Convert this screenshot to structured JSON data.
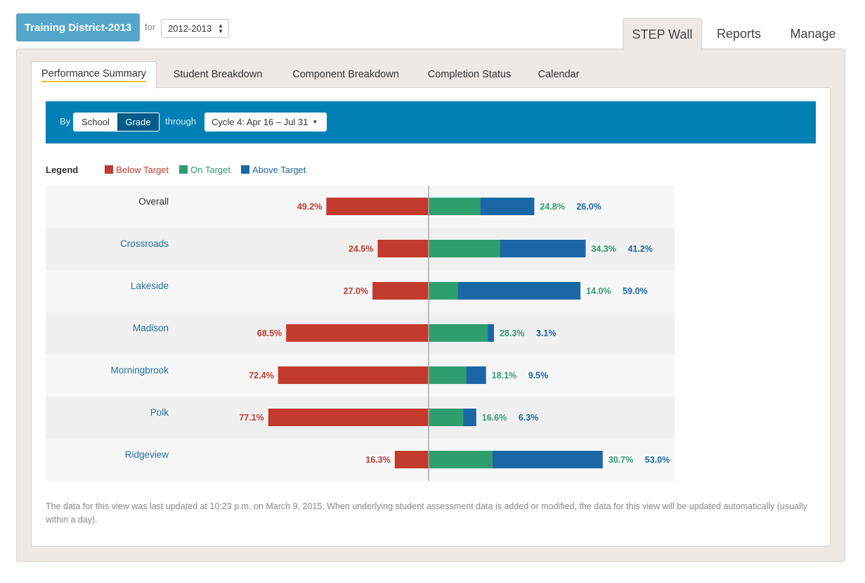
{
  "header": {
    "district": "Training District-2013",
    "for_label": "for",
    "year": "2012-2013",
    "tabs": [
      {
        "label": "STEP Wall",
        "active": true
      },
      {
        "label": "Reports",
        "active": false
      },
      {
        "label": "Manage",
        "active": false
      }
    ]
  },
  "subtabs": [
    {
      "label": "Performance Summary",
      "active": true
    },
    {
      "label": "Student Breakdown",
      "active": false
    },
    {
      "label": "Component Breakdown",
      "active": false
    },
    {
      "label": "Completion Status",
      "active": false
    },
    {
      "label": "Calendar",
      "active": false
    }
  ],
  "filter": {
    "by_label": "By",
    "options": [
      "School",
      "Grade"
    ],
    "selected": "Grade",
    "through_label": "through",
    "cycle": "Cycle 4: Apr 16 – Jul 31"
  },
  "legend": {
    "title": "Legend",
    "items": [
      {
        "label": "Below Target",
        "color": "#c23b2e"
      },
      {
        "label": "On Target",
        "color": "#2f9e6e"
      },
      {
        "label": "Above Target",
        "color": "#1b67a6"
      }
    ]
  },
  "chart_data": {
    "type": "bar",
    "orientation": "diverging-horizontal",
    "categories": [
      "Overall",
      "Crossroads",
      "Lakeside",
      "Madison",
      "Morningbrook",
      "Polk",
      "Ridgeview"
    ],
    "series": [
      {
        "name": "Below Target",
        "values": [
          49.2,
          24.5,
          27.0,
          68.5,
          72.4,
          77.1,
          16.3
        ],
        "labels": [
          "49.2%",
          "24.5%",
          "27.0%",
          "68.5%",
          "72.4%",
          "77.1%",
          "16.3%"
        ],
        "color": "#c23b2e"
      },
      {
        "name": "On Target",
        "values": [
          24.8,
          34.3,
          14.0,
          28.3,
          18.1,
          16.6,
          30.7
        ],
        "labels": [
          "24.8%",
          "34.3%",
          "14.0%",
          "28.3%",
          "18.1%",
          "16.6%",
          "30.7%"
        ],
        "color": "#2f9e6e"
      },
      {
        "name": "Above Target",
        "values": [
          26.0,
          41.2,
          59.0,
          3.1,
          9.5,
          6.3,
          53.0
        ],
        "labels": [
          "26.0%",
          "41.2%",
          "59.0%",
          "3.1%",
          "9.5%",
          "6.3%",
          "53.0%"
        ],
        "color": "#1b67a6"
      }
    ],
    "category_link": [
      false,
      true,
      true,
      true,
      true,
      true,
      true
    ]
  },
  "footnote": "The data for this view was last updated at 10:23 p.m. on March 9, 2015. When underlying student assessment data is added or modified, the data for this view will be updated automatically (usually within a day).",
  "colors": {
    "accent": "#55a7c9",
    "filter_bar": "#0180b5",
    "link": "#1f6f9c",
    "tab_underline": "#f1c232"
  }
}
